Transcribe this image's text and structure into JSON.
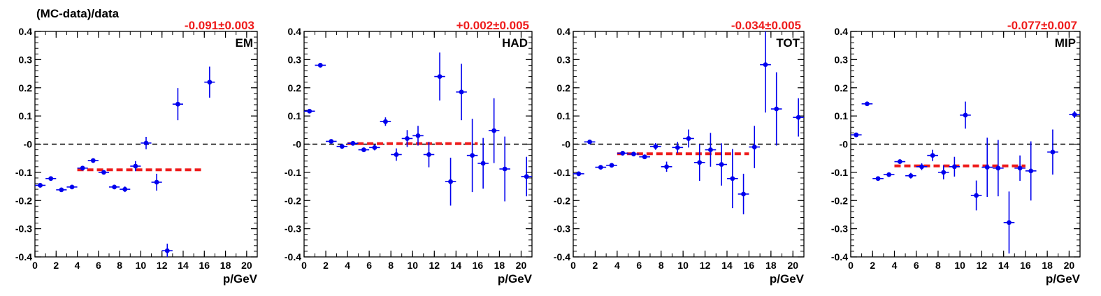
{
  "figure": {
    "ylabel": "(MC-data)/data",
    "yticks": [
      "0.4",
      "0.3",
      "0.2",
      "0.1",
      "-0",
      "-0.1",
      "-0.2",
      "-0.3",
      "-0.4"
    ],
    "xticks": [
      "0",
      "2",
      "4",
      "6",
      "8",
      "10",
      "12",
      "14",
      "16",
      "18",
      "20"
    ]
  },
  "colors": {
    "points": "#0000ee",
    "fit": "#ee1c1c",
    "fit_text": "#ee1c1c",
    "axis": "#000000"
  },
  "chart_data": [
    {
      "type": "scatter",
      "label": "EM",
      "fit_text": "-0.091±0.003",
      "xlabel": "p/GeV",
      "xlim": [
        0,
        21
      ],
      "ylim": [
        -0.4,
        0.4
      ],
      "fit": {
        "x": [
          4,
          16
        ],
        "y": -0.091
      },
      "points": [
        {
          "x": 0.5,
          "y": -0.146,
          "e": 0.006
        },
        {
          "x": 1.5,
          "y": -0.122,
          "e": 0.005
        },
        {
          "x": 2.5,
          "y": -0.162,
          "e": 0.005
        },
        {
          "x": 3.5,
          "y": -0.152,
          "e": 0.005
        },
        {
          "x": 4.5,
          "y": -0.085,
          "e": 0.005
        },
        {
          "x": 5.5,
          "y": -0.058,
          "e": 0.005
        },
        {
          "x": 6.5,
          "y": -0.1,
          "e": 0.006
        },
        {
          "x": 7.5,
          "y": -0.152,
          "e": 0.008
        },
        {
          "x": 8.5,
          "y": -0.16,
          "e": 0.01
        },
        {
          "x": 9.5,
          "y": -0.078,
          "e": 0.018
        },
        {
          "x": 10.5,
          "y": 0.004,
          "e": 0.022
        },
        {
          "x": 11.5,
          "y": -0.135,
          "e": 0.03
        },
        {
          "x": 12.5,
          "y": -0.378,
          "e": 0.025
        },
        {
          "x": 13.5,
          "y": 0.142,
          "e": 0.057
        },
        {
          "x": 16.5,
          "y": 0.22,
          "e": 0.055
        }
      ]
    },
    {
      "type": "scatter",
      "label": "HAD",
      "fit_text": "+0.002±0.005",
      "xlabel": "p/GeV",
      "xlim": [
        0,
        21
      ],
      "ylim": [
        -0.4,
        0.4
      ],
      "fit": {
        "x": [
          4,
          16
        ],
        "y": 0.002
      },
      "points": [
        {
          "x": 0.5,
          "y": 0.117,
          "e": 0.006
        },
        {
          "x": 1.5,
          "y": 0.28,
          "e": 0.005
        },
        {
          "x": 2.5,
          "y": 0.01,
          "e": 0.005
        },
        {
          "x": 3.5,
          "y": -0.008,
          "e": 0.005
        },
        {
          "x": 4.5,
          "y": 0.003,
          "e": 0.005
        },
        {
          "x": 5.5,
          "y": -0.02,
          "e": 0.006
        },
        {
          "x": 6.5,
          "y": -0.012,
          "e": 0.01
        },
        {
          "x": 7.5,
          "y": 0.08,
          "e": 0.015
        },
        {
          "x": 8.5,
          "y": -0.037,
          "e": 0.022
        },
        {
          "x": 9.5,
          "y": 0.02,
          "e": 0.03
        },
        {
          "x": 10.5,
          "y": 0.03,
          "e": 0.035
        },
        {
          "x": 11.5,
          "y": -0.037,
          "e": 0.045
        },
        {
          "x": 12.5,
          "y": 0.24,
          "e": 0.085
        },
        {
          "x": 13.5,
          "y": -0.133,
          "e": 0.085
        },
        {
          "x": 14.5,
          "y": 0.185,
          "e": 0.1
        },
        {
          "x": 15.5,
          "y": -0.04,
          "e": 0.13
        },
        {
          "x": 16.5,
          "y": -0.068,
          "e": 0.09
        },
        {
          "x": 17.5,
          "y": 0.048,
          "e": 0.115
        },
        {
          "x": 18.5,
          "y": -0.088,
          "e": 0.115
        },
        {
          "x": 20.5,
          "y": -0.115,
          "e": 0.07
        }
      ]
    },
    {
      "type": "scatter",
      "label": "TOT",
      "fit_text": "-0.034±0.005",
      "xlabel": "p/GeV",
      "xlim": [
        0,
        21
      ],
      "ylim": [
        -0.4,
        0.4
      ],
      "fit": {
        "x": [
          4,
          16
        ],
        "y": -0.034
      },
      "points": [
        {
          "x": 0.5,
          "y": -0.105,
          "e": 0.008
        },
        {
          "x": 1.5,
          "y": 0.008,
          "e": 0.008
        },
        {
          "x": 2.5,
          "y": -0.082,
          "e": 0.005
        },
        {
          "x": 3.5,
          "y": -0.075,
          "e": 0.005
        },
        {
          "x": 4.5,
          "y": -0.032,
          "e": 0.005
        },
        {
          "x": 5.5,
          "y": -0.035,
          "e": 0.005
        },
        {
          "x": 6.5,
          "y": -0.045,
          "e": 0.008
        },
        {
          "x": 7.5,
          "y": -0.008,
          "e": 0.012
        },
        {
          "x": 8.5,
          "y": -0.08,
          "e": 0.018
        },
        {
          "x": 9.5,
          "y": -0.012,
          "e": 0.02
        },
        {
          "x": 10.5,
          "y": 0.02,
          "e": 0.032
        },
        {
          "x": 11.5,
          "y": -0.065,
          "e": 0.065
        },
        {
          "x": 12.5,
          "y": -0.02,
          "e": 0.06
        },
        {
          "x": 13.5,
          "y": -0.072,
          "e": 0.075
        },
        {
          "x": 14.5,
          "y": -0.122,
          "e": 0.105
        },
        {
          "x": 15.5,
          "y": -0.177,
          "e": 0.072
        },
        {
          "x": 16.5,
          "y": -0.01,
          "e": 0.075
        },
        {
          "x": 17.5,
          "y": 0.282,
          "e": 0.17
        },
        {
          "x": 18.5,
          "y": 0.125,
          "e": 0.13
        },
        {
          "x": 20.5,
          "y": 0.095,
          "e": 0.068
        }
      ]
    },
    {
      "type": "scatter",
      "label": "MIP",
      "fit_text": "-0.077±0.007",
      "xlabel": "p/GeV",
      "xlim": [
        0,
        21
      ],
      "ylim": [
        -0.4,
        0.4
      ],
      "fit": {
        "x": [
          4,
          16
        ],
        "y": -0.077
      },
      "points": [
        {
          "x": 0.5,
          "y": 0.033,
          "e": 0.005
        },
        {
          "x": 1.5,
          "y": 0.143,
          "e": 0.005
        },
        {
          "x": 2.5,
          "y": -0.122,
          "e": 0.005
        },
        {
          "x": 3.5,
          "y": -0.108,
          "e": 0.005
        },
        {
          "x": 4.5,
          "y": -0.062,
          "e": 0.008
        },
        {
          "x": 5.5,
          "y": -0.112,
          "e": 0.01
        },
        {
          "x": 6.5,
          "y": -0.08,
          "e": 0.012
        },
        {
          "x": 7.5,
          "y": -0.04,
          "e": 0.02
        },
        {
          "x": 8.5,
          "y": -0.1,
          "e": 0.025
        },
        {
          "x": 9.5,
          "y": -0.08,
          "e": 0.035
        },
        {
          "x": 10.5,
          "y": 0.103,
          "e": 0.048
        },
        {
          "x": 11.5,
          "y": -0.182,
          "e": 0.053
        },
        {
          "x": 12.5,
          "y": -0.082,
          "e": 0.105
        },
        {
          "x": 13.5,
          "y": -0.085,
          "e": 0.1
        },
        {
          "x": 14.5,
          "y": -0.278,
          "e": 0.11
        },
        {
          "x": 15.5,
          "y": -0.085,
          "e": 0.045
        },
        {
          "x": 16.5,
          "y": -0.095,
          "e": 0.105
        },
        {
          "x": 18.5,
          "y": -0.028,
          "e": 0.08
        },
        {
          "x": 20.5,
          "y": 0.105,
          "e": 0.012
        }
      ]
    }
  ]
}
